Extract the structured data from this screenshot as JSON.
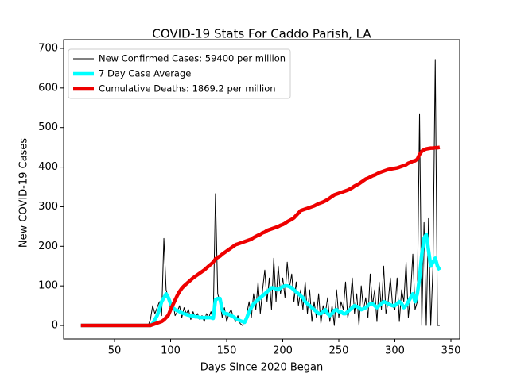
{
  "chart_data": {
    "type": "line",
    "title": "COVID-19 Stats For Caddo Parish, LA",
    "xlabel": "Days Since 2020 Began",
    "ylabel": "New COVID-19 Cases",
    "xlim": [
      4.6,
      357.8
    ],
    "ylim": [
      -34,
      722
    ],
    "xticks": [
      50,
      100,
      150,
      200,
      250,
      300,
      350
    ],
    "yticks": [
      0,
      100,
      200,
      300,
      400,
      500,
      600,
      700
    ],
    "legend": "upper left",
    "x": [
      20,
      40,
      60,
      80,
      82,
      84,
      86,
      88,
      90,
      92,
      94,
      96,
      98,
      100,
      102,
      104,
      106,
      108,
      110,
      112,
      114,
      116,
      118,
      120,
      122,
      124,
      126,
      128,
      130,
      132,
      134,
      136,
      138,
      140,
      142,
      144,
      146,
      148,
      150,
      152,
      154,
      156,
      158,
      160,
      162,
      164,
      166,
      168,
      170,
      172,
      174,
      176,
      178,
      180,
      182,
      184,
      186,
      188,
      190,
      192,
      194,
      196,
      198,
      200,
      202,
      204,
      206,
      208,
      210,
      212,
      214,
      216,
      218,
      220,
      222,
      224,
      226,
      228,
      230,
      232,
      234,
      236,
      238,
      240,
      242,
      244,
      246,
      248,
      250,
      252,
      254,
      256,
      258,
      260,
      262,
      264,
      266,
      268,
      270,
      272,
      274,
      276,
      278,
      280,
      282,
      284,
      286,
      288,
      290,
      292,
      294,
      296,
      298,
      300,
      302,
      304,
      306,
      308,
      310,
      312,
      314,
      316,
      318,
      320,
      322,
      324,
      326,
      328,
      330,
      332,
      334,
      336,
      338,
      340
    ],
    "series": [
      {
        "name": "New Confirmed Cases: 59400 per million",
        "color": "#000000",
        "linewidth": 1,
        "values": [
          0,
          0,
          0,
          0,
          15,
          50,
          30,
          45,
          60,
          25,
          220,
          90,
          70,
          40,
          60,
          25,
          35,
          50,
          20,
          45,
          30,
          40,
          15,
          35,
          20,
          30,
          15,
          25,
          10,
          30,
          20,
          35,
          15,
          333,
          80,
          60,
          20,
          45,
          10,
          30,
          40,
          20,
          10,
          25,
          5,
          0,
          10,
          30,
          60,
          20,
          80,
          40,
          110,
          30,
          90,
          140,
          60,
          120,
          40,
          170,
          60,
          150,
          80,
          120,
          70,
          160,
          95,
          130,
          60,
          110,
          50,
          90,
          40,
          110,
          30,
          90,
          10,
          60,
          20,
          80,
          5,
          50,
          30,
          70,
          10,
          50,
          0,
          90,
          20,
          60,
          40,
          110,
          20,
          50,
          120,
          30,
          80,
          0,
          100,
          40,
          70,
          20,
          130,
          50,
          90,
          10,
          110,
          40,
          150,
          30,
          60,
          120,
          50,
          40,
          120,
          10,
          90,
          60,
          160,
          20,
          80,
          180,
          40,
          60,
          535,
          0,
          260,
          0,
          270,
          0,
          150,
          672,
          0,
          0
        ]
      },
      {
        "name": "7 Day Case Average",
        "color": "#00ffff",
        "linewidth": 4.5,
        "values": [
          0,
          0,
          0,
          0,
          0,
          5,
          15,
          25,
          40,
          60,
          70,
          80,
          70,
          55,
          45,
          40,
          38,
          35,
          32,
          30,
          28,
          26,
          25,
          24,
          22,
          22,
          20,
          20,
          20,
          20,
          20,
          20,
          18,
          65,
          68,
          68,
          40,
          30,
          30,
          28,
          25,
          22,
          18,
          15,
          12,
          10,
          8,
          20,
          35,
          45,
          55,
          60,
          65,
          70,
          75,
          80,
          85,
          90,
          95,
          95,
          92,
          90,
          95,
          98,
          100,
          100,
          98,
          95,
          90,
          85,
          80,
          75,
          70,
          60,
          55,
          50,
          45,
          40,
          35,
          30,
          30,
          35,
          40,
          30,
          25,
          30,
          38,
          40,
          35,
          35,
          30,
          30,
          35,
          40,
          45,
          50,
          48,
          45,
          40,
          42,
          45,
          50,
          55,
          55,
          50,
          45,
          50,
          55,
          60,
          58,
          55,
          52,
          50,
          50,
          55,
          60,
          55,
          45,
          50,
          60,
          70,
          80,
          60,
          80,
          120,
          180,
          220,
          230,
          190,
          150,
          160,
          170,
          150,
          140
        ]
      },
      {
        "name": "Cumulative Deaths: 1869.2 per million",
        "color": "#ee0000",
        "linewidth": 4.5,
        "values": [
          0,
          0,
          0,
          0,
          0,
          2,
          4,
          6,
          8,
          10,
          14,
          20,
          26,
          40,
          52,
          64,
          76,
          86,
          94,
          100,
          105,
          110,
          115,
          120,
          124,
          128,
          132,
          136,
          140,
          145,
          150,
          155,
          160,
          168,
          172,
          175,
          180,
          184,
          188,
          192,
          196,
          200,
          204,
          206,
          208,
          210,
          212,
          214,
          216,
          218,
          222,
          225,
          228,
          230,
          234,
          236,
          240,
          242,
          244,
          246,
          248,
          250,
          253,
          255,
          258,
          262,
          265,
          268,
          272,
          278,
          284,
          290,
          292,
          294,
          296,
          298,
          300,
          302,
          305,
          308,
          310,
          312,
          315,
          318,
          322,
          326,
          330,
          332,
          334,
          336,
          338,
          340,
          342,
          345,
          348,
          352,
          355,
          358,
          362,
          366,
          370,
          372,
          375,
          378,
          380,
          383,
          386,
          388,
          390,
          392,
          394,
          395,
          396,
          397,
          398,
          400,
          402,
          404,
          406,
          410,
          412,
          415,
          416,
          420,
          432,
          440,
          444,
          446,
          447,
          448,
          448,
          449,
          449,
          450
        ]
      }
    ]
  }
}
